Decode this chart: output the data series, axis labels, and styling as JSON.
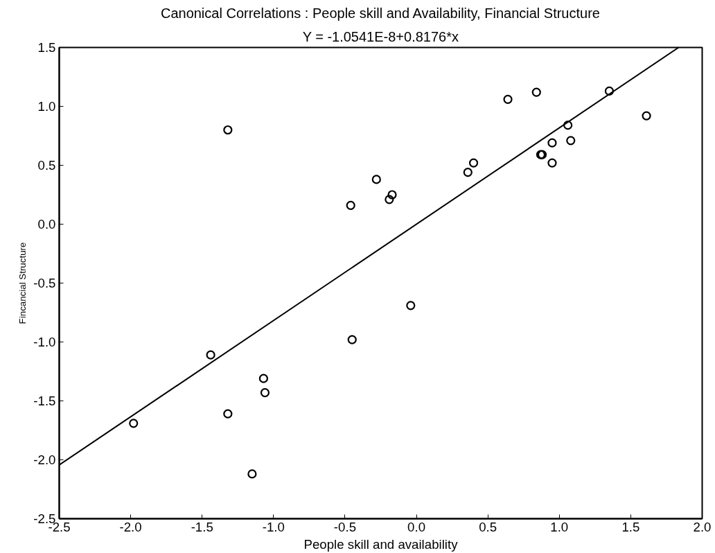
{
  "chart_data": {
    "type": "scatter",
    "title": "Canonical Correlations : People skill and Availability, Financial Structure",
    "subtitle": "Y = -1.0541E-8+0.8176*x",
    "xlabel": "People skill and availability",
    "ylabel": "Fincancial Structure",
    "xlim": [
      -2.5,
      2.0
    ],
    "ylim": [
      -2.5,
      1.5
    ],
    "xticks": [
      {
        "value": -2.5,
        "label": "-2.5"
      },
      {
        "value": -2,
        "label": "-2.0"
      },
      {
        "value": -1.5,
        "label": "-1.5"
      },
      {
        "value": -1,
        "label": "-1.0"
      },
      {
        "value": -0.5,
        "label": "-0.5"
      },
      {
        "value": 0,
        "label": "0.0"
      },
      {
        "value": 0.5,
        "label": "0.5"
      },
      {
        "value": 1,
        "label": "1.0"
      },
      {
        "value": 1.5,
        "label": "1.5"
      },
      {
        "value": 2,
        "label": "2.0"
      }
    ],
    "yticks": [
      {
        "value": -2.5,
        "label": "-2.5"
      },
      {
        "value": -2,
        "label": "-2.0"
      },
      {
        "value": -1.5,
        "label": "-1.5"
      },
      {
        "value": -1,
        "label": "-1.0"
      },
      {
        "value": -0.5,
        "label": "-0.5"
      },
      {
        "value": 0,
        "label": "0.0"
      },
      {
        "value": 0.5,
        "label": "0.5"
      },
      {
        "value": 1,
        "label": "1.0"
      },
      {
        "value": 1.5,
        "label": "1.5"
      }
    ],
    "grid": false,
    "series": [
      {
        "marker": "circle",
        "color": "#000000",
        "x": [
          -1.32,
          -0.46,
          -0.28,
          -0.17,
          -0.19,
          0.36,
          0.4,
          0.64,
          0.84,
          0.87,
          0.88,
          0.95,
          0.95,
          1.06,
          1.08,
          1.35,
          1.61,
          -1.98,
          -1.44,
          -1.32,
          -1.15,
          -1.07,
          -1.06,
          -0.45,
          -0.04
        ],
        "values": [
          0.8,
          0.16,
          0.38,
          0.25,
          0.21,
          0.44,
          0.52,
          1.06,
          1.12,
          0.59,
          0.59,
          0.69,
          0.52,
          0.84,
          0.71,
          1.13,
          0.92,
          -1.69,
          -1.11,
          -1.61,
          -2.12,
          -1.31,
          -1.43,
          -0.98,
          -0.69
        ]
      },
      {
        "type": "line",
        "marker": "none",
        "line_style": "solid",
        "color": "#000000",
        "x": [
          -2.5,
          1.835
        ],
        "values": [
          -2.044,
          1.5
        ]
      }
    ]
  }
}
